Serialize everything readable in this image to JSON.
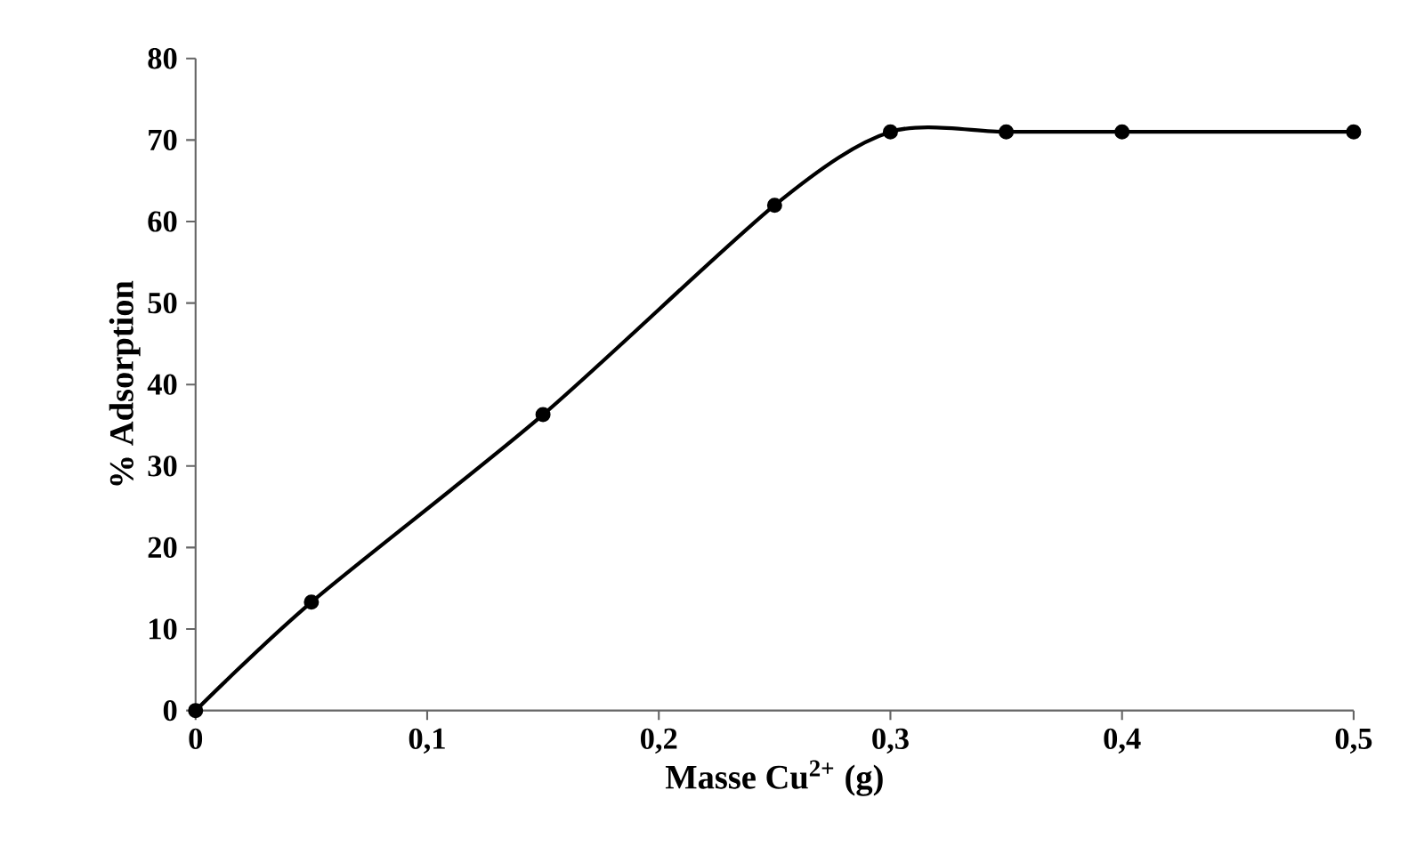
{
  "chart_data": {
    "type": "line",
    "xlabel": "Masse Cu$^{2+}$ (g)",
    "ylabel": "% Adsorption",
    "x": [
      0,
      0.05,
      0.15,
      0.25,
      0.3,
      0.35,
      0.4,
      0.5
    ],
    "series": [
      {
        "color": "#000000",
        "values": [
          0,
          13.3,
          36.3,
          62,
          71,
          71,
          71,
          71
        ]
      }
    ],
    "xlim": [
      0,
      0.5
    ],
    "xticks": [
      0,
      {
        "value": 0.1,
        "label": "0,1"
      },
      {
        "value": 0.2,
        "label": "0,2"
      },
      {
        "value": 0.3,
        "label": "0,3"
      },
      {
        "value": 0.4,
        "label": "0,4"
      },
      {
        "value": 0.5,
        "label": "0,5"
      }
    ],
    "ylim": [
      0,
      80
    ],
    "yticks": [
      0,
      10,
      20,
      30,
      40,
      50,
      60,
      70,
      80
    ],
    "grid": false,
    "marker": "circle",
    "line_style": "solid"
  }
}
